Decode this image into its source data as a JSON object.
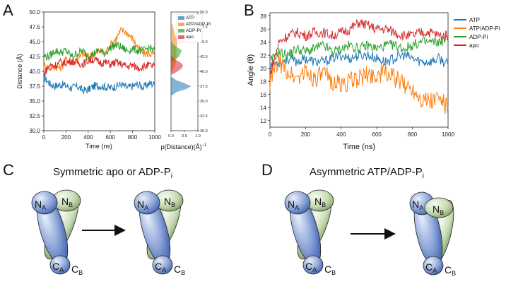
{
  "figure": {
    "panels": [
      {
        "letter": "A"
      },
      {
        "letter": "B"
      },
      {
        "letter": "C",
        "title": "Symmetric apo or ADP-P",
        "title_sub": "i"
      },
      {
        "letter": "D",
        "title": "Asymmetric ATP/ADP-P",
        "title_sub": "i"
      }
    ],
    "colors": {
      "ATP": "#1f77b4",
      "ATP/ADP-Pi": "#ff7f0e",
      "ADP-Pi": "#2ca02c",
      "apo": "#d62728",
      "domain_blue": "#7b96d0",
      "domain_green": "#bcd6a8"
    },
    "schematic_labels": {
      "NA": {
        "main": "N",
        "sub": "A"
      },
      "NB": {
        "main": "N",
        "sub": "B"
      },
      "CA": {
        "main": "C",
        "sub": "A"
      },
      "CB": {
        "main": "C",
        "sub": "B"
      }
    }
  },
  "chart_data": [
    {
      "panel": "A",
      "type": "line",
      "xlabel": "Time (ns)",
      "ylabel": "Distance (Å)",
      "xlim": [
        0,
        1000
      ],
      "ylim": [
        30.0,
        50.0
      ],
      "xticks": [
        "0",
        "200",
        "400",
        "600",
        "800",
        "1000"
      ],
      "yticks": [
        "30.0",
        "32.5",
        "35.0",
        "37.5",
        "40.0",
        "42.5",
        "45.0",
        "47.5",
        "50.0"
      ],
      "series": [
        {
          "name": "ATP",
          "x": [
            0,
            50,
            100,
            150,
            200,
            250,
            300,
            350,
            400,
            450,
            500,
            550,
            600,
            650,
            700,
            750,
            800,
            850,
            900,
            950,
            1000
          ],
          "values": [
            39.0,
            38.0,
            37.5,
            37.8,
            37.6,
            37.2,
            37.5,
            36.8,
            36.9,
            37.5,
            37.6,
            37.4,
            37.2,
            37.5,
            37.8,
            37.2,
            37.5,
            37.8,
            37.3,
            38.0,
            37.8
          ]
        },
        {
          "name": "ATP/ADP-Pi",
          "x": [
            0,
            50,
            100,
            150,
            200,
            250,
            300,
            350,
            400,
            450,
            500,
            550,
            600,
            650,
            700,
            750,
            800,
            850,
            900,
            950,
            1000
          ],
          "values": [
            41.0,
            40.5,
            40.8,
            40.5,
            42.0,
            41.5,
            41.8,
            43.0,
            42.5,
            42.8,
            43.5,
            43.0,
            44.5,
            45.5,
            47.0,
            46.5,
            45.5,
            44.0,
            43.0,
            43.0,
            42.8
          ]
        },
        {
          "name": "ADP-Pi",
          "x": [
            0,
            50,
            100,
            150,
            200,
            250,
            300,
            350,
            400,
            450,
            500,
            550,
            600,
            650,
            700,
            750,
            800,
            850,
            900,
            950,
            1000
          ],
          "values": [
            42.5,
            42.5,
            43.5,
            43.2,
            43.5,
            42.5,
            43.0,
            43.5,
            42.5,
            43.0,
            43.5,
            43.0,
            44.0,
            44.5,
            44.0,
            43.5,
            43.8,
            43.5,
            43.5,
            44.0,
            43.5
          ]
        },
        {
          "name": "apo",
          "x": [
            0,
            50,
            100,
            150,
            200,
            250,
            300,
            350,
            400,
            450,
            500,
            550,
            600,
            650,
            700,
            750,
            800,
            850,
            900,
            950,
            1000
          ],
          "values": [
            39.5,
            41.0,
            41.0,
            41.5,
            41.5,
            41.8,
            41.5,
            41.2,
            41.8,
            42.0,
            41.5,
            41.5,
            41.2,
            41.5,
            41.2,
            40.8,
            41.0,
            40.6,
            40.8,
            41.0,
            40.8
          ]
        }
      ],
      "grid": false
    },
    {
      "panel": "A (side)",
      "type": "area",
      "xlabel": "p(Distance)(Å)",
      "xlabel_sup": "−1",
      "xlim": [
        0.0,
        1.0
      ],
      "ylim": [
        30.0,
        50.0
      ],
      "xticks": [
        "0.0",
        "0.5",
        "1.0"
      ],
      "yticks": [
        "30.0",
        "32.5",
        "35.0",
        "37.5",
        "40.0",
        "42.5",
        "45.0",
        "47.5",
        "50.0"
      ],
      "legend": [
        "ATP",
        "ATP/ADP-Pi",
        "ADP-Pi",
        "apo"
      ],
      "legend_position": "top-right",
      "series": [
        {
          "name": "ATP",
          "y": [
            36.0,
            36.5,
            37.0,
            37.5,
            38.0,
            38.5,
            39.0
          ],
          "values": [
            0.05,
            0.2,
            0.55,
            0.75,
            0.5,
            0.2,
            0.05
          ]
        },
        {
          "name": "ATP/ADP-Pi",
          "y": [
            40.0,
            41.0,
            42.0,
            43.0,
            44.0,
            45.0,
            46.0,
            47.0,
            48.0
          ],
          "values": [
            0.05,
            0.15,
            0.2,
            0.2,
            0.2,
            0.25,
            0.15,
            0.1,
            0.05
          ]
        },
        {
          "name": "ADP-Pi",
          "y": [
            41.5,
            42.0,
            42.5,
            43.0,
            43.5,
            44.0,
            44.5,
            45.0
          ],
          "values": [
            0.05,
            0.15,
            0.3,
            0.35,
            0.4,
            0.25,
            0.1,
            0.03
          ]
        },
        {
          "name": "apo",
          "y": [
            39.5,
            40.0,
            40.5,
            41.0,
            41.5,
            42.0,
            42.5
          ],
          "values": [
            0.05,
            0.25,
            0.4,
            0.45,
            0.35,
            0.15,
            0.05
          ]
        }
      ]
    },
    {
      "panel": "B",
      "type": "line",
      "xlabel": "Time (ns)",
      "ylabel": "Angle (θ)",
      "xlim": [
        0,
        1000
      ],
      "ylim": [
        11,
        28.5
      ],
      "xticks": [
        "0",
        "200",
        "400",
        "600",
        "800",
        "1000"
      ],
      "yticks": [
        "12",
        "14",
        "16",
        "18",
        "20",
        "22",
        "24",
        "26",
        "28"
      ],
      "legend": [
        "ATP",
        "ATP/ADP-Pi",
        "ADP-Pi",
        "apo"
      ],
      "legend_position": "top-right",
      "series": [
        {
          "name": "ATP",
          "x": [
            0,
            50,
            100,
            150,
            200,
            250,
            300,
            350,
            400,
            450,
            500,
            550,
            600,
            650,
            700,
            750,
            800,
            850,
            900,
            950,
            1000
          ],
          "values": [
            20.5,
            21.0,
            21.5,
            21.0,
            21.5,
            21.0,
            21.0,
            21.5,
            22.0,
            21.5,
            22.0,
            22.0,
            21.5,
            21.0,
            21.5,
            22.0,
            21.5,
            21.0,
            21.0,
            21.5,
            20.5
          ]
        },
        {
          "name": "ATP/ADP-Pi",
          "x": [
            0,
            50,
            100,
            150,
            200,
            250,
            300,
            350,
            400,
            450,
            500,
            550,
            600,
            650,
            700,
            750,
            800,
            850,
            900,
            950,
            1000
          ],
          "values": [
            18.0,
            21.0,
            19.5,
            18.5,
            19.5,
            18.5,
            19.0,
            18.0,
            17.5,
            18.0,
            18.5,
            19.0,
            19.0,
            19.5,
            18.5,
            17.5,
            17.0,
            15.5,
            15.0,
            15.5,
            14.0
          ]
        },
        {
          "name": "ADP-Pi",
          "x": [
            0,
            50,
            100,
            150,
            200,
            250,
            300,
            350,
            400,
            450,
            500,
            550,
            600,
            650,
            700,
            750,
            800,
            850,
            900,
            950,
            1000
          ],
          "values": [
            21.0,
            22.5,
            22.0,
            23.0,
            22.5,
            23.0,
            23.5,
            22.5,
            23.0,
            23.5,
            23.0,
            23.5,
            23.0,
            23.5,
            23.5,
            23.0,
            23.5,
            24.0,
            24.0,
            24.0,
            24.5
          ]
        },
        {
          "name": "apo",
          "x": [
            0,
            50,
            100,
            150,
            200,
            250,
            300,
            350,
            400,
            450,
            500,
            550,
            600,
            650,
            700,
            750,
            800,
            850,
            900,
            950,
            1000
          ],
          "values": [
            19.0,
            24.0,
            25.0,
            25.5,
            25.0,
            25.5,
            25.5,
            25.0,
            25.5,
            26.0,
            27.0,
            26.5,
            26.0,
            26.0,
            25.5,
            25.0,
            25.0,
            25.5,
            25.5,
            25.0,
            25.0
          ]
        }
      ],
      "grid": false
    }
  ]
}
